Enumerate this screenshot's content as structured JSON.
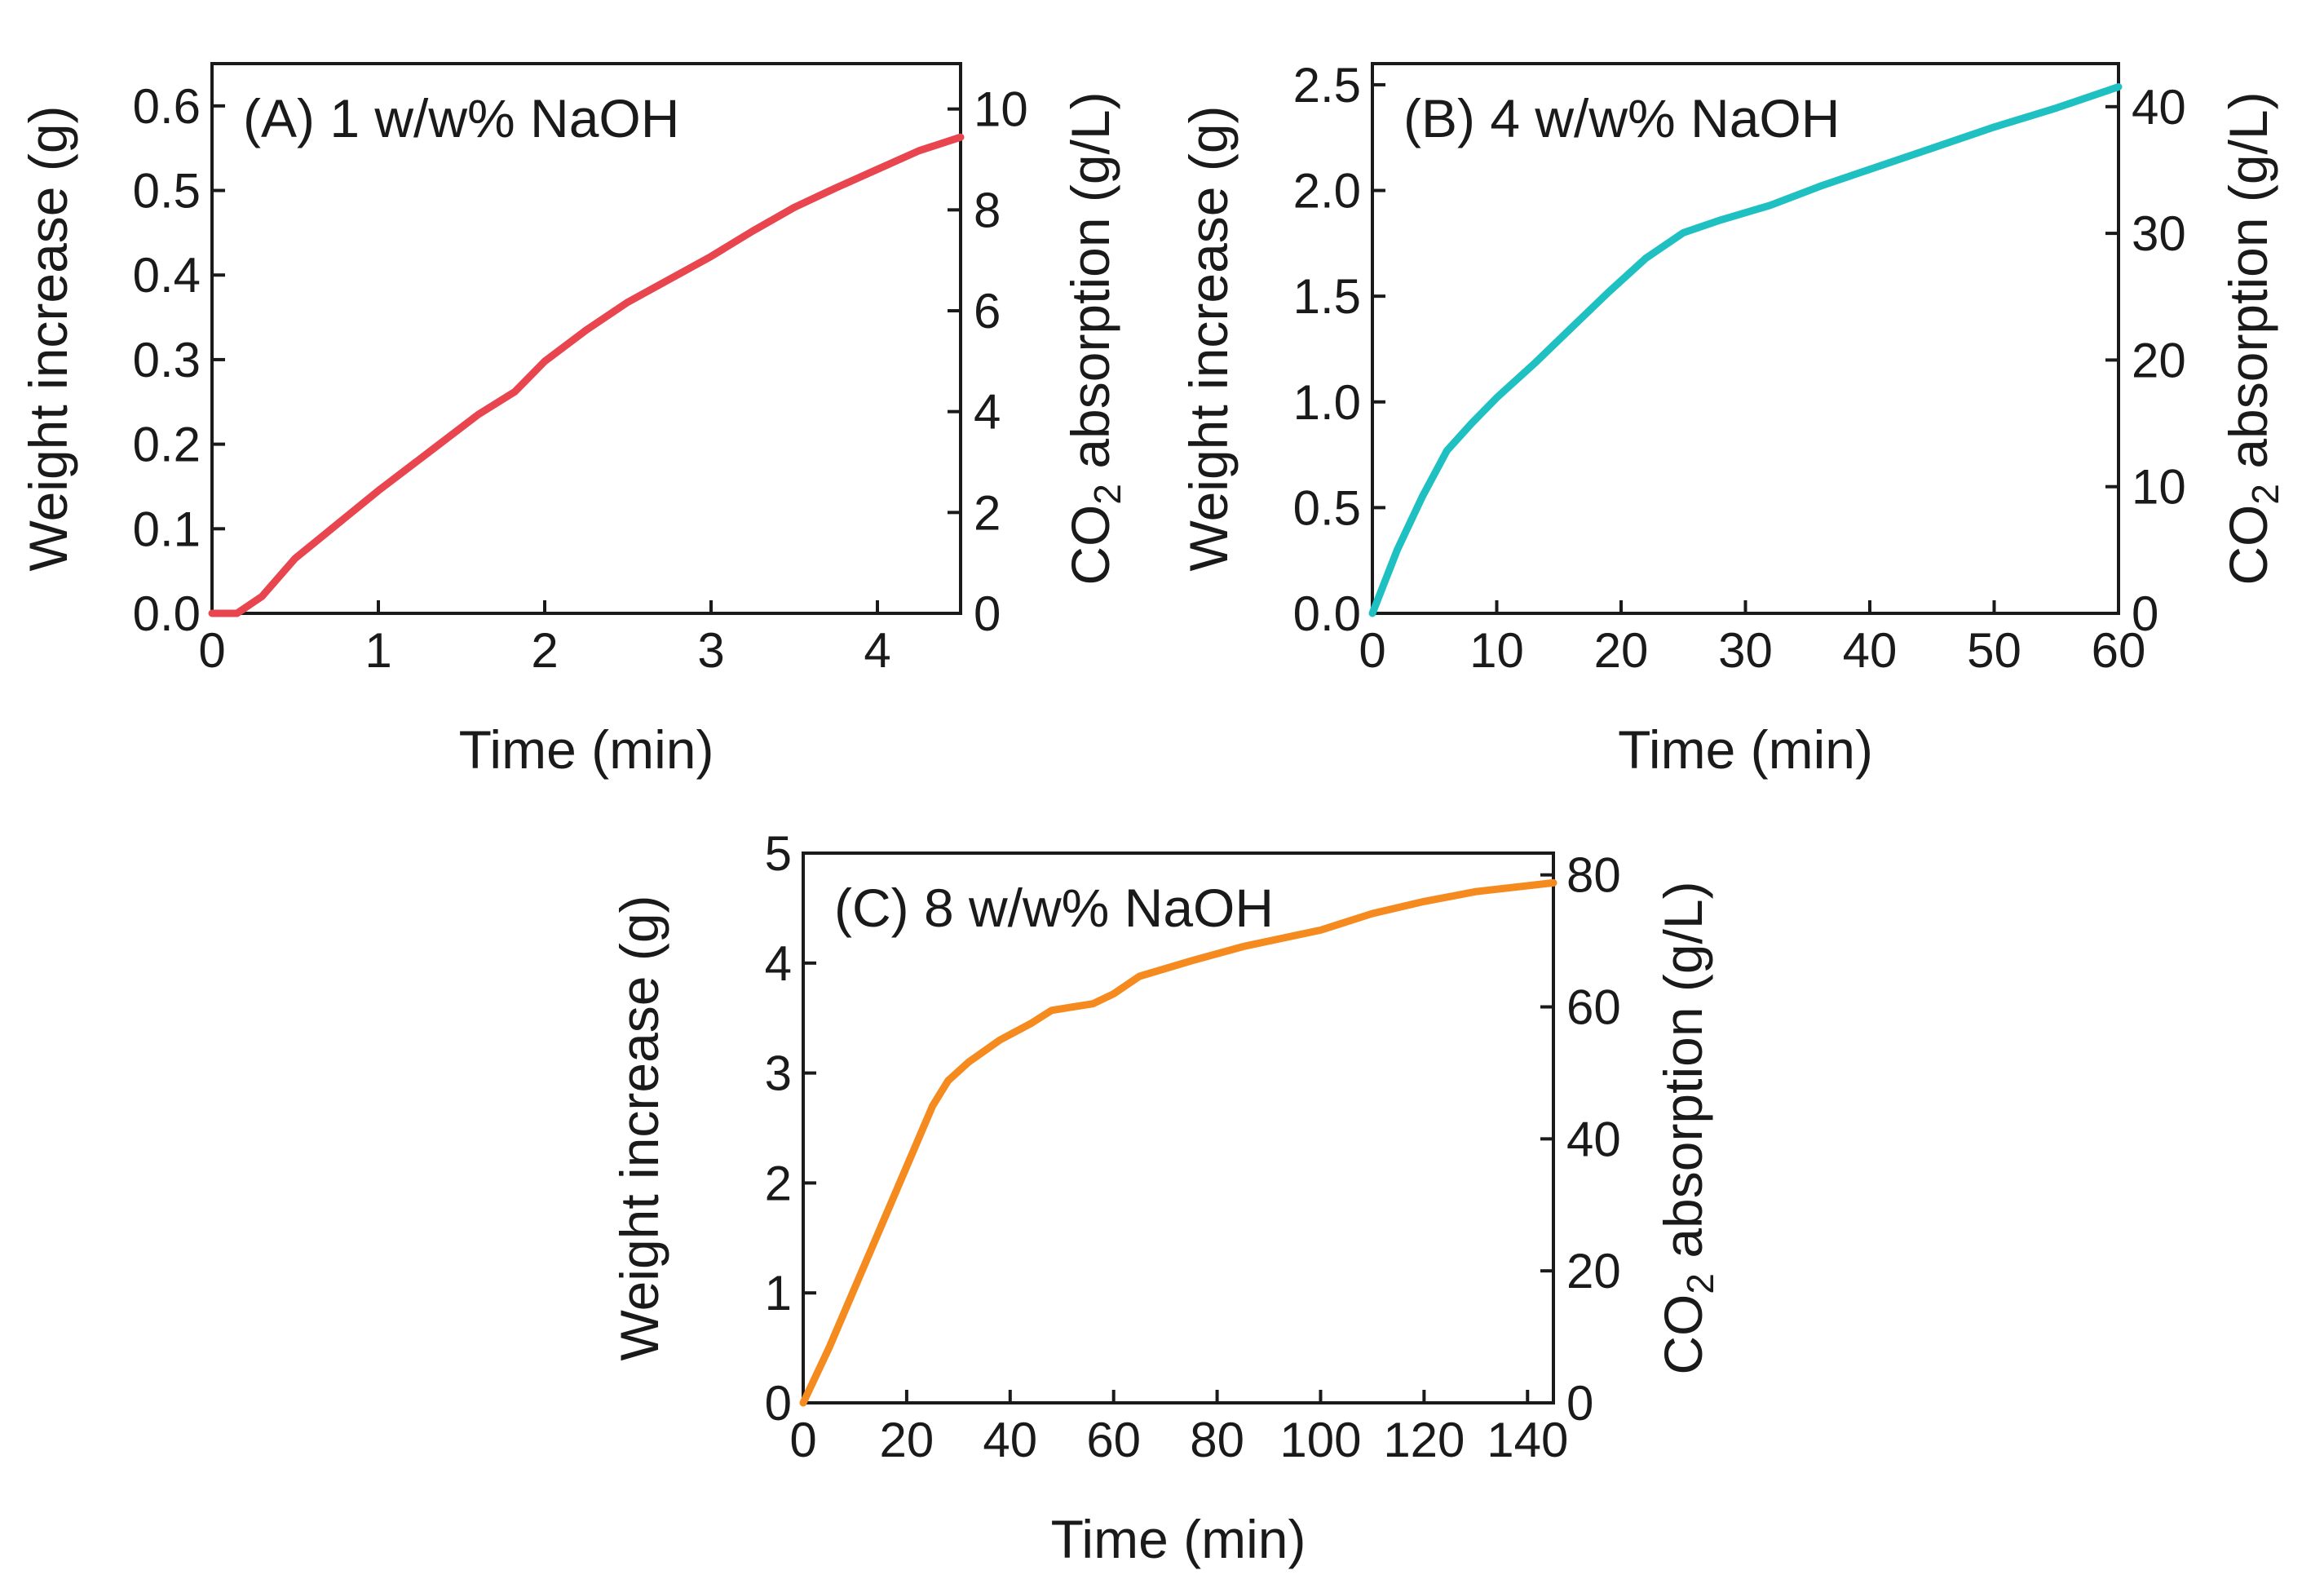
{
  "chart_data": [
    {
      "type": "line",
      "panel_label": "(A) 1 w/w% NaOH",
      "xlabel": "Time (min)",
      "ylabel": "Weight increase (g)",
      "y2label_prefix": "CO",
      "y2label_sub": "2",
      "y2label_suffix": " absorption (g/L)",
      "xlim": [
        0,
        4.5
      ],
      "ylim": [
        0,
        0.65
      ],
      "y2lim": [
        0,
        10.9
      ],
      "xticks": [
        0,
        1,
        2,
        3,
        4
      ],
      "xtick_labels": [
        "0",
        "1",
        "2",
        "3",
        "4"
      ],
      "yticks": [
        0.0,
        0.1,
        0.2,
        0.3,
        0.4,
        0.5,
        0.6
      ],
      "ytick_labels": [
        "0.0",
        "0.1",
        "0.2",
        "0.3",
        "0.4",
        "0.5",
        "0.6"
      ],
      "y2ticks": [
        0,
        2,
        4,
        6,
        8,
        10
      ],
      "y2tick_labels": [
        "0",
        "2",
        "4",
        "6",
        "8",
        "10"
      ],
      "color": "#e8454f",
      "series": [
        {
          "name": "1 w/w% NaOH",
          "x": [
            0,
            0.15,
            0.3,
            0.5,
            0.75,
            1.0,
            1.3,
            1.6,
            1.82,
            2.0,
            2.25,
            2.5,
            2.75,
            3.0,
            3.25,
            3.5,
            3.75,
            4.0,
            4.25,
            4.5
          ],
          "y": [
            0.0,
            0.0,
            0.02,
            0.065,
            0.105,
            0.145,
            0.19,
            0.235,
            0.262,
            0.298,
            0.335,
            0.368,
            0.395,
            0.422,
            0.452,
            0.48,
            0.503,
            0.525,
            0.547,
            0.563
          ]
        }
      ]
    },
    {
      "type": "line",
      "panel_label": "(B) 4 w/w% NaOH",
      "xlabel": "Time (min)",
      "ylabel": "Weight increase (g)",
      "y2label_prefix": "CO",
      "y2label_sub": "2",
      "y2label_suffix": " absorption (g/L)",
      "xlim": [
        0,
        60
      ],
      "ylim": [
        0,
        2.6
      ],
      "y2lim": [
        0,
        43.4
      ],
      "xticks": [
        0,
        10,
        20,
        30,
        40,
        50,
        60
      ],
      "xtick_labels": [
        "0",
        "10",
        "20",
        "30",
        "40",
        "50",
        "60"
      ],
      "yticks": [
        0.0,
        0.5,
        1.0,
        1.5,
        2.0,
        2.5
      ],
      "ytick_labels": [
        "0.0",
        "0.5",
        "1.0",
        "1.5",
        "2.0",
        "2.5"
      ],
      "y2ticks": [
        0,
        10,
        20,
        30,
        40
      ],
      "y2tick_labels": [
        "0",
        "10",
        "20",
        "30",
        "40"
      ],
      "color": "#1fc0c2",
      "series": [
        {
          "name": "4 w/w% NaOH",
          "x": [
            0,
            2,
            4,
            6,
            8,
            10,
            13,
            16,
            19,
            22,
            25,
            28,
            32,
            36,
            40,
            45,
            50,
            55,
            60
          ],
          "y": [
            0.0,
            0.3,
            0.55,
            0.77,
            0.9,
            1.02,
            1.18,
            1.35,
            1.52,
            1.68,
            1.8,
            1.86,
            1.93,
            2.02,
            2.1,
            2.2,
            2.3,
            2.39,
            2.49
          ]
        }
      ]
    },
    {
      "type": "line",
      "panel_label": "(C) 8 w/w% NaOH",
      "xlabel": "Time (min)",
      "ylabel": "Weight increase (g)",
      "y2label_prefix": "CO",
      "y2label_sub": "2",
      "y2label_suffix": " absorption (g/L)",
      "xlim": [
        0,
        145
      ],
      "ylim": [
        0,
        5
      ],
      "y2lim": [
        0,
        83.3
      ],
      "xticks": [
        0,
        20,
        40,
        60,
        80,
        100,
        120,
        140
      ],
      "xtick_labels": [
        "0",
        "20",
        "40",
        "60",
        "80",
        "100",
        "120",
        "140"
      ],
      "yticks": [
        0,
        1,
        2,
        3,
        4,
        5
      ],
      "ytick_labels": [
        "0",
        "1",
        "2",
        "3",
        "4",
        "5"
      ],
      "y2ticks": [
        0,
        20,
        40,
        60,
        80
      ],
      "y2tick_labels": [
        "0",
        "20",
        "40",
        "60",
        "80"
      ],
      "color": "#f58a1f",
      "series": [
        {
          "name": "8 w/w% NaOH",
          "x": [
            0,
            5,
            10,
            15,
            20,
            25,
            28,
            32,
            38,
            44,
            48,
            52,
            56,
            60,
            65,
            75,
            85,
            92,
            100,
            110,
            120,
            130,
            145
          ],
          "y": [
            0.0,
            0.5,
            1.05,
            1.6,
            2.15,
            2.7,
            2.93,
            3.1,
            3.3,
            3.45,
            3.57,
            3.6,
            3.63,
            3.72,
            3.88,
            4.02,
            4.15,
            4.22,
            4.3,
            4.45,
            4.56,
            4.65,
            4.73
          ]
        }
      ]
    }
  ]
}
